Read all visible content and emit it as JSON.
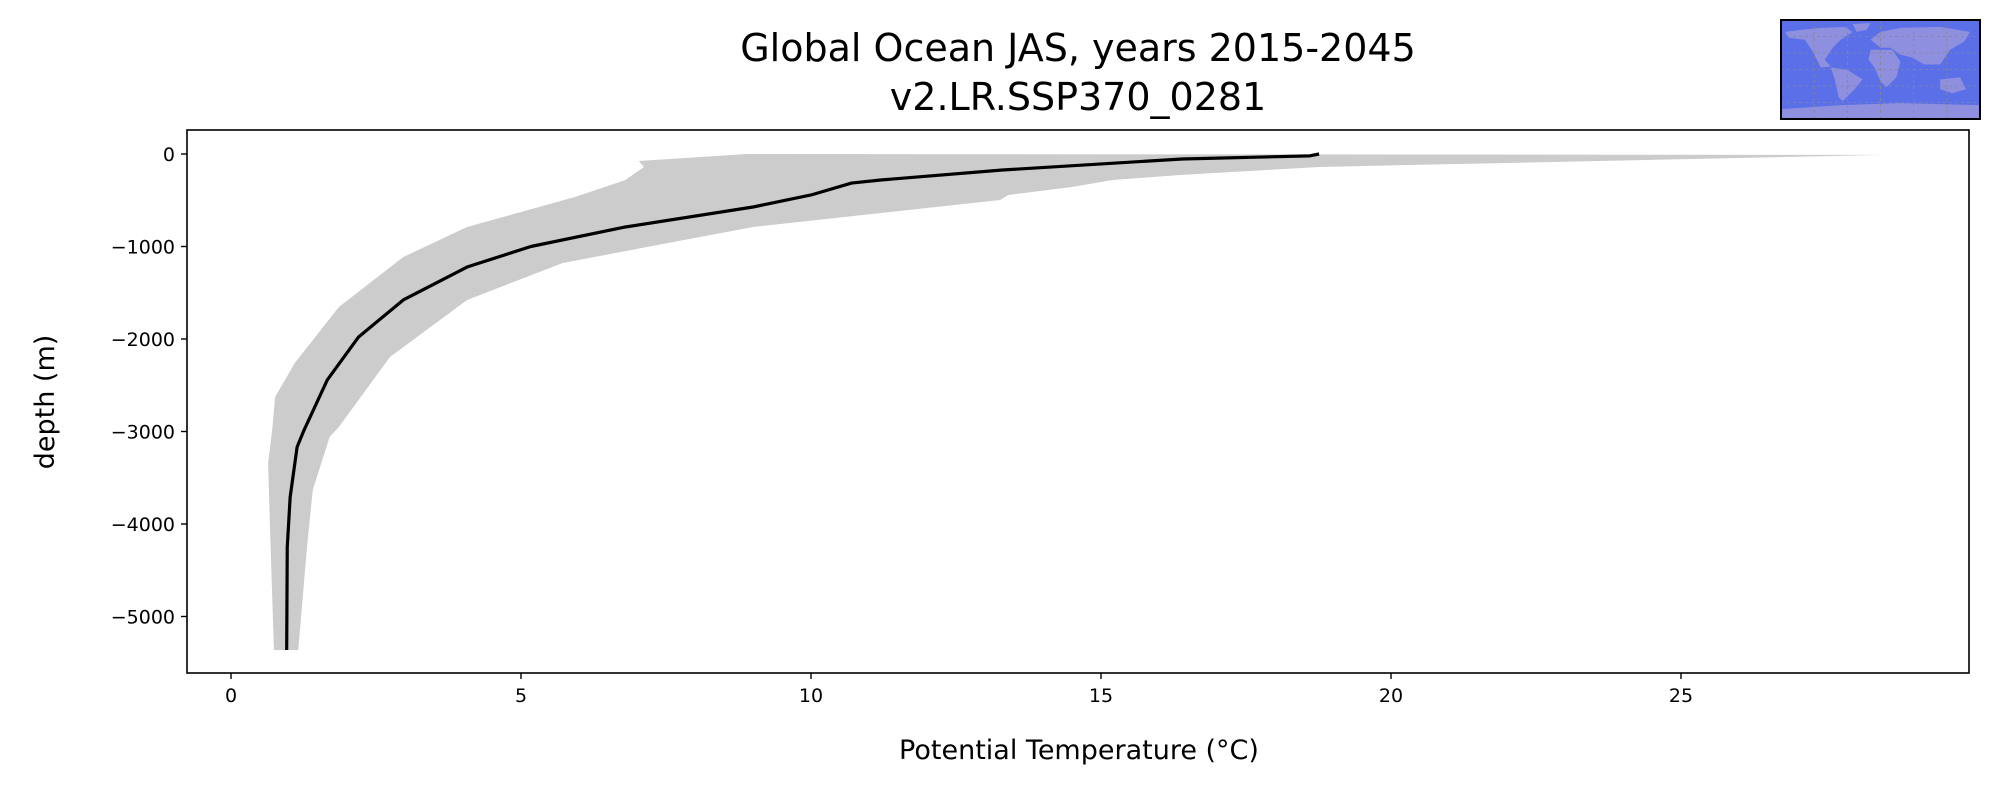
{
  "chart_data": {
    "type": "line",
    "title": "Global Ocean JAS, years 2015-2045",
    "subtitle": "v2.LR.SSP370_0281",
    "xlabel": "Potential Temperature (°C)",
    "ylabel": "depth (m)",
    "xlim": [
      -0.75,
      29.75
    ],
    "ylim": [
      -5650,
      280
    ],
    "xticks": [
      0,
      5,
      10,
      15,
      20,
      25
    ],
    "xtick_labels": [
      "0",
      "5",
      "10",
      "15",
      "20",
      "25"
    ],
    "yticks": [
      0,
      -1000,
      -2000,
      -3000,
      -4000,
      -5000
    ],
    "ytick_labels": [
      "0",
      "−1000",
      "−2000",
      "−3000",
      "−4000",
      "−5000"
    ],
    "grid": false,
    "series": [
      {
        "name": "mean profile",
        "kind": "line",
        "color": "#000000",
        "points": [
          [
            18.76,
            0
          ],
          [
            18.6,
            -20
          ],
          [
            16.4,
            -54
          ],
          [
            13.3,
            -173
          ],
          [
            11.2,
            -281
          ],
          [
            10.7,
            -314
          ],
          [
            10.0,
            -443
          ],
          [
            9.0,
            -573
          ],
          [
            6.8,
            -789
          ],
          [
            5.17,
            -1000
          ],
          [
            4.07,
            -1222
          ],
          [
            2.97,
            -1578
          ],
          [
            2.2,
            -1978
          ],
          [
            1.66,
            -2443
          ],
          [
            1.26,
            -2984
          ],
          [
            1.14,
            -3167
          ],
          [
            1.02,
            -3708
          ],
          [
            0.97,
            -4249
          ],
          [
            0.96,
            -5362
          ]
        ]
      },
      {
        "name": "range",
        "kind": "band",
        "color": "#cccccc",
        "lower": [
          [
            8.9,
            0
          ],
          [
            7.03,
            -76
          ],
          [
            7.12,
            -140
          ],
          [
            6.8,
            -281
          ],
          [
            5.93,
            -465
          ],
          [
            4.07,
            -789
          ],
          [
            2.97,
            -1114
          ],
          [
            1.86,
            -1654
          ],
          [
            1.1,
            -2260
          ],
          [
            0.76,
            -2627
          ],
          [
            0.71,
            -2984
          ],
          [
            0.64,
            -3340
          ],
          [
            0.67,
            -3990
          ],
          [
            0.74,
            -5362
          ]
        ],
        "upper": [
          [
            28.5,
            -10
          ],
          [
            18.76,
            -140
          ],
          [
            16.36,
            -227
          ],
          [
            15.2,
            -281
          ],
          [
            14.5,
            -357
          ],
          [
            13.4,
            -443
          ],
          [
            13.26,
            -497
          ],
          [
            9.0,
            -789
          ],
          [
            5.72,
            -1178
          ],
          [
            4.07,
            -1578
          ],
          [
            2.74,
            -2195
          ],
          [
            1.86,
            -2951
          ],
          [
            1.7,
            -3059
          ],
          [
            1.41,
            -3632
          ],
          [
            1.31,
            -4249
          ],
          [
            1.16,
            -5362
          ]
        ]
      }
    ],
    "inset": "world-map-icon",
    "colors": {
      "ocean": "#5a6fe8",
      "land": "#8f8fe0",
      "band": "#cccccc"
    }
  }
}
